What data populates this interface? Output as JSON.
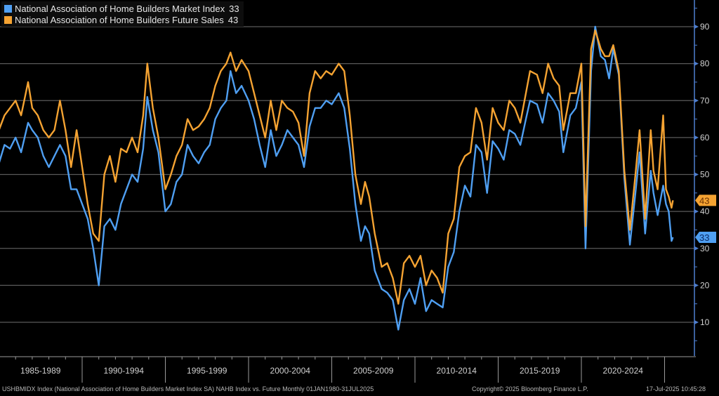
{
  "chart_data": {
    "type": "line",
    "title": "",
    "xlabel": "",
    "ylabel": "",
    "ylim": [
      0,
      97
    ],
    "yticks": [
      10,
      20,
      30,
      40,
      50,
      60,
      70,
      80,
      90
    ],
    "grid": true,
    "legend_position": "top-left",
    "x_period_labels": [
      "1985-1989",
      "1990-1994",
      "1995-1999",
      "2000-2004",
      "2005-2009",
      "2010-2014",
      "2015-2019",
      "2020-2024"
    ],
    "x": [
      "1985-01",
      "1985-05",
      "1985-09",
      "1986-01",
      "1986-05",
      "1986-10",
      "1987-01",
      "1987-05",
      "1987-09",
      "1988-01",
      "1988-05",
      "1988-09",
      "1989-01",
      "1989-05",
      "1989-09",
      "1990-01",
      "1990-05",
      "1990-09",
      "1991-01",
      "1991-05",
      "1991-09",
      "1992-01",
      "1992-05",
      "1992-09",
      "1993-01",
      "1993-05",
      "1993-09",
      "1993-12",
      "1994-04",
      "1994-08",
      "1995-01",
      "1995-05",
      "1995-09",
      "1996-01",
      "1996-05",
      "1996-09",
      "1997-01",
      "1997-05",
      "1997-09",
      "1998-01",
      "1998-05",
      "1998-09",
      "1998-12",
      "1999-04",
      "1999-08",
      "2000-01",
      "2000-05",
      "2000-09",
      "2001-01",
      "2001-05",
      "2001-09",
      "2002-01",
      "2002-05",
      "2002-09",
      "2003-01",
      "2003-05",
      "2003-09",
      "2004-01",
      "2004-05",
      "2004-09",
      "2005-01",
      "2005-06",
      "2005-10",
      "2006-02",
      "2006-06",
      "2006-10",
      "2007-01",
      "2007-04",
      "2007-08",
      "2008-01",
      "2008-05",
      "2008-09",
      "2009-01",
      "2009-05",
      "2009-09",
      "2010-01",
      "2010-05",
      "2010-09",
      "2011-01",
      "2011-05",
      "2011-09",
      "2012-01",
      "2012-05",
      "2012-09",
      "2013-01",
      "2013-05",
      "2013-09",
      "2014-01",
      "2014-05",
      "2014-09",
      "2015-01",
      "2015-05",
      "2015-09",
      "2016-01",
      "2016-05",
      "2016-09",
      "2016-12",
      "2017-05",
      "2017-09",
      "2018-01",
      "2018-05",
      "2018-09",
      "2018-12",
      "2019-05",
      "2019-09",
      "2020-01",
      "2020-04",
      "2020-08",
      "2020-11",
      "2021-03",
      "2021-06",
      "2021-09",
      "2021-12",
      "2022-04",
      "2022-08",
      "2022-12",
      "2023-04",
      "2023-07",
      "2023-11",
      "2024-03",
      "2024-05",
      "2024-08",
      "2024-12",
      "2025-02",
      "2025-04",
      "2025-06",
      "2025-07"
    ],
    "series": [
      {
        "name": "National Association of Home Builders Market Index",
        "last": "33",
        "color": "#4f9ff2",
        "values": [
          53,
          58,
          57,
          60,
          56,
          64,
          62,
          60,
          55,
          52,
          55,
          58,
          55,
          46,
          46,
          42,
          38,
          30,
          20,
          36,
          38,
          35,
          42,
          46,
          50,
          48,
          57,
          71,
          62,
          56,
          40,
          42,
          48,
          50,
          58,
          55,
          53,
          56,
          58,
          65,
          68,
          70,
          78,
          72,
          74,
          70,
          65,
          58,
          52,
          62,
          55,
          58,
          62,
          60,
          58,
          52,
          63,
          68,
          68,
          70,
          69,
          72,
          68,
          57,
          42,
          32,
          36,
          34,
          24,
          19,
          18,
          16,
          8,
          16,
          19,
          15,
          22,
          13,
          16,
          15,
          14,
          25,
          29,
          40,
          47,
          44,
          58,
          56,
          45,
          59,
          57,
          54,
          62,
          61,
          58,
          65,
          70,
          69,
          64,
          72,
          70,
          67,
          56,
          66,
          68,
          75,
          30,
          78,
          90,
          82,
          81,
          76,
          84,
          77,
          49,
          31,
          45,
          56,
          34,
          51,
          45,
          39,
          47,
          42,
          40,
          32,
          33
        ]
      },
      {
        "name": "National Association of Home Builders Future Sales",
        "last": "43",
        "color": "#f5a332",
        "values": [
          62,
          66,
          68,
          70,
          66,
          75,
          68,
          66,
          62,
          60,
          62,
          70,
          62,
          52,
          62,
          52,
          42,
          34,
          32,
          50,
          55,
          48,
          57,
          56,
          60,
          56,
          66,
          80,
          68,
          60,
          46,
          50,
          55,
          58,
          65,
          62,
          63,
          65,
          68,
          74,
          78,
          80,
          83,
          78,
          81,
          78,
          72,
          66,
          60,
          70,
          62,
          70,
          68,
          67,
          64,
          55,
          72,
          78,
          76,
          78,
          77,
          80,
          78,
          66,
          50,
          42,
          48,
          44,
          34,
          25,
          26,
          22,
          15,
          26,
          28,
          25,
          28,
          20,
          24,
          22,
          18,
          34,
          38,
          52,
          55,
          56,
          68,
          64,
          54,
          68,
          64,
          62,
          70,
          68,
          64,
          72,
          78,
          77,
          72,
          80,
          76,
          74,
          62,
          72,
          72,
          80,
          36,
          84,
          89,
          84,
          82,
          82,
          85,
          78,
          51,
          35,
          50,
          62,
          38,
          62,
          51,
          46,
          66,
          46,
          44,
          41,
          43
        ]
      }
    ]
  },
  "legend": {
    "items": [
      {
        "label": "National Association of Home Builders Market Index",
        "value": "33",
        "color": "#4f9ff2"
      },
      {
        "label": "National Association of Home Builders Future Sales",
        "value": "43",
        "color": "#f5a332"
      }
    ]
  },
  "footer": {
    "source": "USHBMIDX Index (National Association of Home Builders Market Index SA) NAHB Index vs. Future  Monthly 01JAN1980-31JUL2025",
    "copyright": "Copyright© 2025 Bloomberg Finance L.P.",
    "timestamp": "17-Jul-2025 10:45:28"
  },
  "colors": {
    "background": "#000000",
    "grid": "#5a5a5a",
    "axis": "#4f7fd0",
    "text": "#d0d0d0"
  }
}
